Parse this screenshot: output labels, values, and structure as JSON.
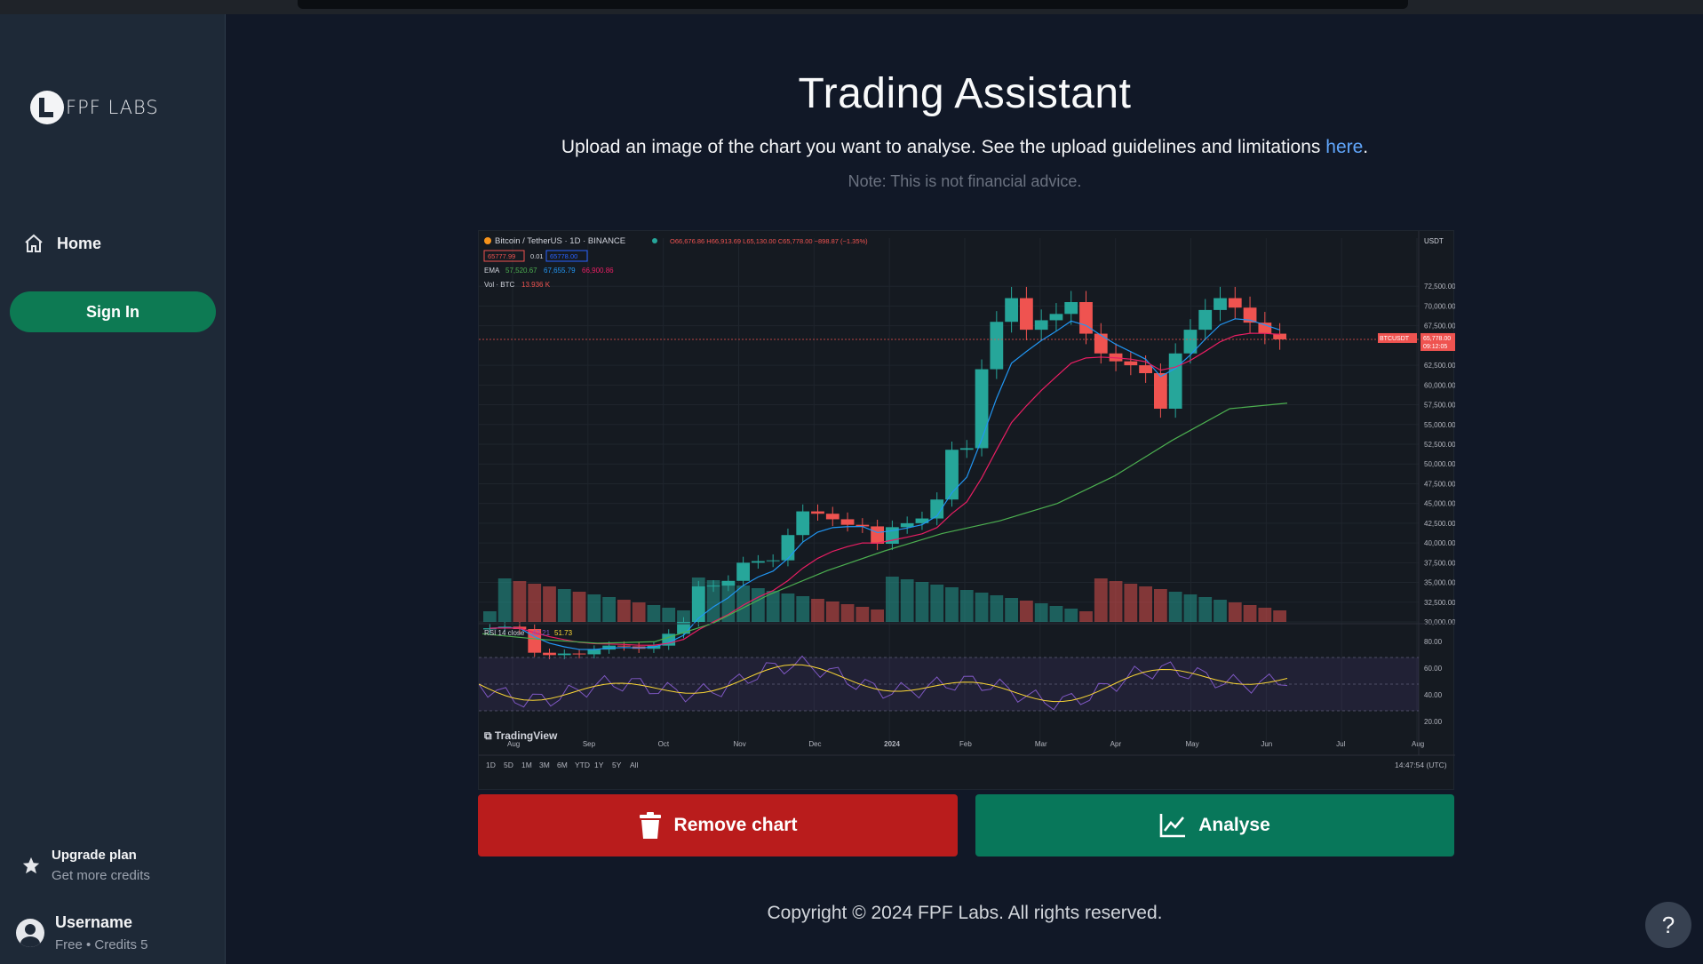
{
  "sidebar": {
    "logo_text": "FPF LABS",
    "nav": [
      {
        "label": "Home",
        "icon": "home-icon"
      }
    ],
    "sign_in_label": "Sign In",
    "upgrade": {
      "title": "Upgrade plan",
      "subtitle": "Get more credits",
      "icon": "star-icon"
    },
    "user": {
      "name": "Username",
      "plan": "Free • Credits 5",
      "icon": "user-circle-icon"
    }
  },
  "main": {
    "title": "Trading Assistant",
    "subtitle_prefix": "Upload an image of the chart you want to analyse. See the upload guidelines and limitations",
    "subtitle_link": "here",
    "subtitle_suffix": ".",
    "note": "Note: This is not financial advice.",
    "remove_label": "Remove chart",
    "analyse_label": "Analyse",
    "footer": "Copyright © 2024 FPF Labs. All rights reserved.",
    "help_label": "?"
  },
  "colors": {
    "accent_green": "#08775a",
    "accent_red": "#b91c1c",
    "link": "#60a5fa",
    "background": "#111827",
    "sidebar": "#1e2937"
  },
  "chart_data": {
    "type": "candlestick",
    "symbol_line": "Bitcoin / TetherUS · 1D · BINANCE",
    "ohlc": {
      "o": "O66,676.86",
      "h": "H66,913.69",
      "l": "L65,130.00",
      "c": "C65,778.00",
      "change": "−898.87 (−1.35%)"
    },
    "bid_ask": {
      "bid": "65777.99",
      "spread": "0.01",
      "ask": "65778.00"
    },
    "ema_legend": {
      "label": "EMA",
      "v1": "57,520.67",
      "v2": "67,655.79",
      "v3": "66,900.86"
    },
    "vol_legend": {
      "label": "Vol · BTC",
      "value": "13.936 K"
    },
    "currency": "USDT",
    "price_tag": {
      "symbol": "BTCUSDT",
      "price": "65,778.00",
      "countdown": "09:12:05"
    },
    "y_ticks": [
      "72,500.00",
      "70,000.00",
      "67,500.00",
      "62,500.00",
      "60,000.00",
      "57,500.00",
      "55,000.00",
      "52,500.00",
      "50,000.00",
      "47,500.00",
      "45,000.00",
      "42,500.00",
      "40,000.00",
      "37,500.00",
      "35,000.00",
      "32,500.00",
      "30,000.00"
    ],
    "x_ticks": [
      "Aug",
      "Sep",
      "Oct",
      "Nov",
      "Dec",
      "2024",
      "Feb",
      "Mar",
      "Apr",
      "May",
      "Jun",
      "Jul",
      "Aug"
    ],
    "close_approx": [
      29200,
      29400,
      29100,
      26100,
      25800,
      26000,
      25900,
      26500,
      27000,
      26900,
      26600,
      27000,
      28500,
      30000,
      34500,
      34600,
      35200,
      37500,
      37700,
      37800,
      41000,
      44000,
      43700,
      43000,
      42300,
      42100,
      39900,
      42000,
      42500,
      43100,
      45500,
      51800,
      52000,
      62000,
      68000,
      71000,
      67000,
      68200,
      69000,
      70500,
      66500,
      64000,
      63000,
      62500,
      61500,
      57000,
      64000,
      67000,
      69500,
      71000,
      69800,
      67900,
      66500,
      65778
    ],
    "ema_slow_approx": [
      28500,
      27800,
      27300,
      27500,
      29800,
      33500,
      36500,
      39000,
      41200,
      42800,
      45000,
      48500,
      53000,
      57000,
      57700
    ],
    "rsi": {
      "label": "RSI 14 close",
      "rsi_value": "42.21",
      "ma_value": "51.73",
      "y_ticks": [
        "80.00",
        "60.00",
        "40.00",
        "20.00"
      ]
    },
    "periods": [
      "1D",
      "5D",
      "1M",
      "3M",
      "6M",
      "YTD",
      "1Y",
      "5Y",
      "All"
    ],
    "time": "14:47:54 (UTC)",
    "watermark": "TradingView"
  }
}
